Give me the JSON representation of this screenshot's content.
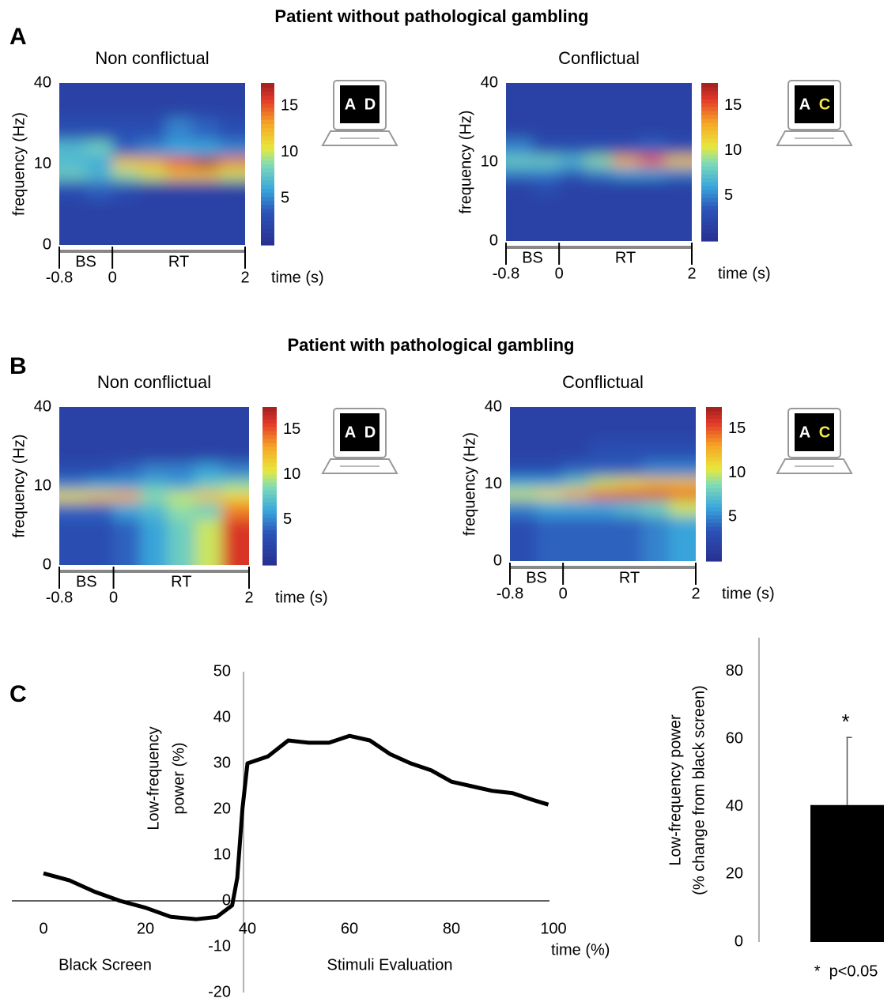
{
  "figure": {
    "panels": [
      "A",
      "B",
      "C"
    ],
    "headings": [
      "Patient without pathological gambling",
      "Patient with pathological gambling"
    ]
  },
  "chart_data": [
    {
      "type": "heatmap",
      "title": "Non conflictual",
      "ylabel": "frequency (Hz)",
      "xlabel": "time (s)",
      "xlim": [
        -0.8,
        2
      ],
      "xticks": [
        -0.8,
        0,
        2
      ],
      "ylim": [
        0,
        40
      ],
      "yticks": [
        0,
        10,
        40
      ],
      "yscale": "sqrt",
      "annotations": [
        "BS",
        "RT"
      ],
      "clim": [
        0,
        17.5
      ],
      "cticks": [
        5,
        10,
        15
      ],
      "screen": [
        "A",
        "D"
      ],
      "screen_colors": [
        "#ffffff",
        "#ffffff"
      ],
      "x": [
        -0.6,
        -0.2,
        0.2,
        0.6,
        1.0,
        1.4,
        1.8
      ],
      "y": [
        2,
        5,
        8,
        10,
        14,
        20,
        30
      ],
      "z": [
        [
          2,
          2,
          2,
          2,
          2,
          2,
          2
        ],
        [
          3,
          4,
          3,
          2,
          2,
          2,
          2
        ],
        [
          8,
          7,
          9,
          10,
          12,
          12,
          10
        ],
        [
          7,
          6,
          12,
          13,
          15,
          17,
          14
        ],
        [
          7,
          8,
          4,
          5,
          6,
          6,
          5
        ],
        [
          3,
          3,
          3,
          3,
          5,
          4,
          3
        ],
        [
          2,
          2,
          2,
          2,
          2,
          2,
          2
        ]
      ]
    },
    {
      "type": "heatmap",
      "title": "Conflictual",
      "ylabel": "frequency (Hz)",
      "xlabel": "time (s)",
      "xlim": [
        -0.8,
        2
      ],
      "xticks": [
        -0.8,
        0,
        2
      ],
      "ylim": [
        0,
        40
      ],
      "yticks": [
        0,
        10,
        40
      ],
      "yscale": "sqrt",
      "annotations": [
        "BS",
        "RT"
      ],
      "clim": [
        0,
        17.5
      ],
      "cticks": [
        5,
        10,
        15
      ],
      "screen": [
        "A",
        "C"
      ],
      "screen_colors": [
        "#ffffff",
        "#f2e84b"
      ],
      "x": [
        -0.6,
        -0.2,
        0.2,
        0.6,
        1.0,
        1.4,
        1.8
      ],
      "y": [
        2,
        5,
        8,
        10,
        14,
        20,
        30
      ],
      "z": [
        [
          2,
          2,
          2,
          2,
          2,
          2,
          2
        ],
        [
          2,
          3,
          2,
          2,
          2,
          2,
          2
        ],
        [
          5,
          5,
          4,
          5,
          6,
          6,
          5
        ],
        [
          8,
          8,
          7,
          9,
          13,
          15,
          12
        ],
        [
          5,
          3,
          3,
          3,
          3,
          4,
          3
        ],
        [
          2,
          2,
          2,
          2,
          2,
          2,
          2
        ],
        [
          2,
          2,
          2,
          2,
          2,
          2,
          2
        ]
      ]
    },
    {
      "type": "heatmap",
      "title": "Non conflictual",
      "ylabel": "frequency (Hz)",
      "xlabel": "time (s)",
      "xlim": [
        -0.8,
        2
      ],
      "xticks": [
        -0.8,
        0,
        2
      ],
      "ylim": [
        0,
        40
      ],
      "yticks": [
        0,
        10,
        40
      ],
      "yscale": "sqrt",
      "annotations": [
        "BS",
        "RT"
      ],
      "clim": [
        0,
        17.5
      ],
      "cticks": [
        5,
        10,
        15
      ],
      "screen": [
        "A",
        "D"
      ],
      "screen_colors": [
        "#ffffff",
        "#ffffff"
      ],
      "x": [
        -0.6,
        -0.2,
        0.2,
        0.6,
        1.0,
        1.4,
        1.8
      ],
      "y": [
        2,
        5,
        8,
        10,
        14,
        20,
        30
      ],
      "z": [
        [
          3,
          3,
          4,
          6,
          8,
          10,
          16
        ],
        [
          4,
          4,
          6,
          7,
          9,
          8,
          14
        ],
        [
          11,
          12,
          13,
          9,
          10,
          12,
          11
        ],
        [
          5,
          6,
          6,
          7,
          6,
          8,
          9
        ],
        [
          3,
          3,
          4,
          5,
          5,
          6,
          5
        ],
        [
          2,
          2,
          2,
          2,
          2,
          2,
          2
        ],
        [
          2,
          2,
          2,
          2,
          2,
          2,
          2
        ]
      ]
    },
    {
      "type": "heatmap",
      "title": "Conflictual",
      "ylabel": "frequency (Hz)",
      "xlabel": "time (s)",
      "xlim": [
        -0.8,
        2
      ],
      "xticks": [
        -0.8,
        0,
        2
      ],
      "ylim": [
        0,
        40
      ],
      "yticks": [
        0,
        10,
        40
      ],
      "yscale": "sqrt",
      "annotations": [
        "BS",
        "RT"
      ],
      "clim": [
        0,
        17.5
      ],
      "cticks": [
        5,
        10,
        15
      ],
      "screen": [
        "A",
        "C"
      ],
      "screen_colors": [
        "#ffffff",
        "#f2e84b"
      ],
      "x": [
        -0.6,
        -0.2,
        0.2,
        0.6,
        1.0,
        1.4,
        1.8
      ],
      "y": [
        2,
        5,
        8,
        10,
        14,
        20,
        30
      ],
      "z": [
        [
          3,
          4,
          4,
          4,
          4,
          5,
          6
        ],
        [
          5,
          6,
          6,
          6,
          7,
          8,
          10
        ],
        [
          10,
          11,
          13,
          15,
          16,
          16,
          15
        ],
        [
          6,
          6,
          8,
          10,
          11,
          12,
          12
        ],
        [
          3,
          3,
          4,
          4,
          4,
          5,
          5
        ],
        [
          2,
          2,
          2,
          3,
          3,
          3,
          3
        ],
        [
          2,
          2,
          2,
          2,
          2,
          2,
          2
        ]
      ]
    },
    {
      "type": "line",
      "ylabel": [
        "Low-frequency",
        "power (%)"
      ],
      "xlabel": "time (%)",
      "annotations": [
        "Black Screen",
        "Stimuli Evaluation"
      ],
      "color": "#000000",
      "xlim": [
        0,
        100
      ],
      "xticks": [
        0,
        20,
        40,
        60,
        80,
        100
      ],
      "ylim": [
        -20,
        50
      ],
      "yticks": [
        -20,
        -10,
        0,
        10,
        20,
        30,
        40,
        50
      ],
      "x": [
        0,
        5,
        10,
        15,
        20,
        25,
        30,
        34,
        37,
        38,
        39,
        40,
        44,
        48,
        52,
        56,
        60,
        64,
        68,
        72,
        76,
        80,
        84,
        88,
        92,
        96,
        99
      ],
      "y": [
        6,
        4.5,
        2,
        0,
        -1.5,
        -3.5,
        -4,
        -3.5,
        -1,
        5,
        20,
        30,
        31.5,
        35,
        34.5,
        34.5,
        36,
        35,
        32,
        30,
        28.5,
        26,
        25,
        24,
        23.5,
        22,
        21
      ]
    },
    {
      "type": "bar",
      "ylabel": [
        "Low-frequency power",
        "(% change from black screen)"
      ],
      "ylim": [
        0,
        90
      ],
      "yticks": [
        0,
        20,
        40,
        60,
        80
      ],
      "color": "#000000",
      "values": [
        40.5
      ],
      "errors": [
        20
      ],
      "annotation": "*",
      "footnote": "*  p<0.05"
    }
  ]
}
